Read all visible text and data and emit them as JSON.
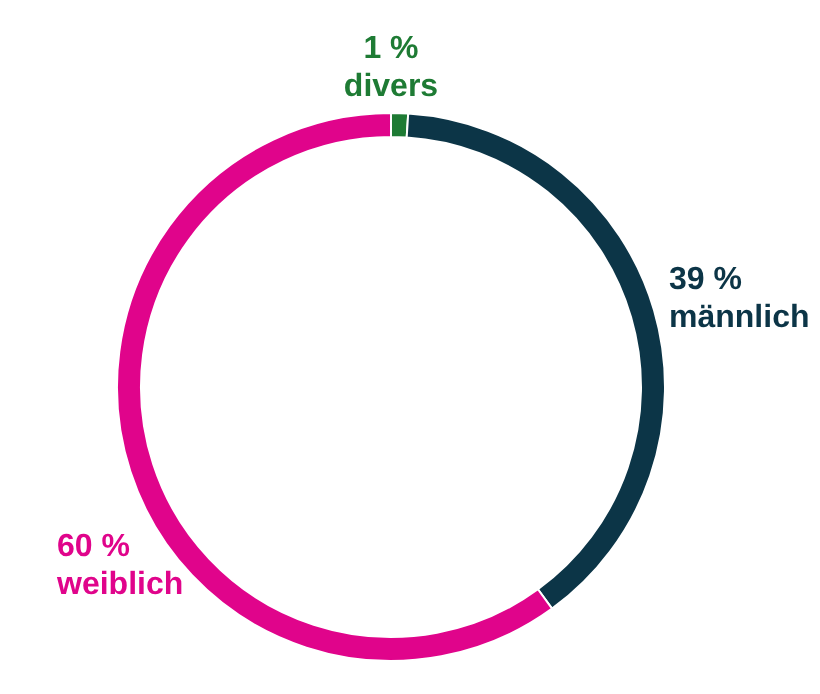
{
  "chart_data": {
    "type": "donut",
    "categories": [
      "divers",
      "männlich",
      "weiblich"
    ],
    "values": [
      1,
      39,
      60
    ],
    "colors": [
      "#1e7b34",
      "#0c3547",
      "#e0048b"
    ],
    "value_labels": [
      "1 %",
      "39 %",
      "60 %"
    ]
  }
}
